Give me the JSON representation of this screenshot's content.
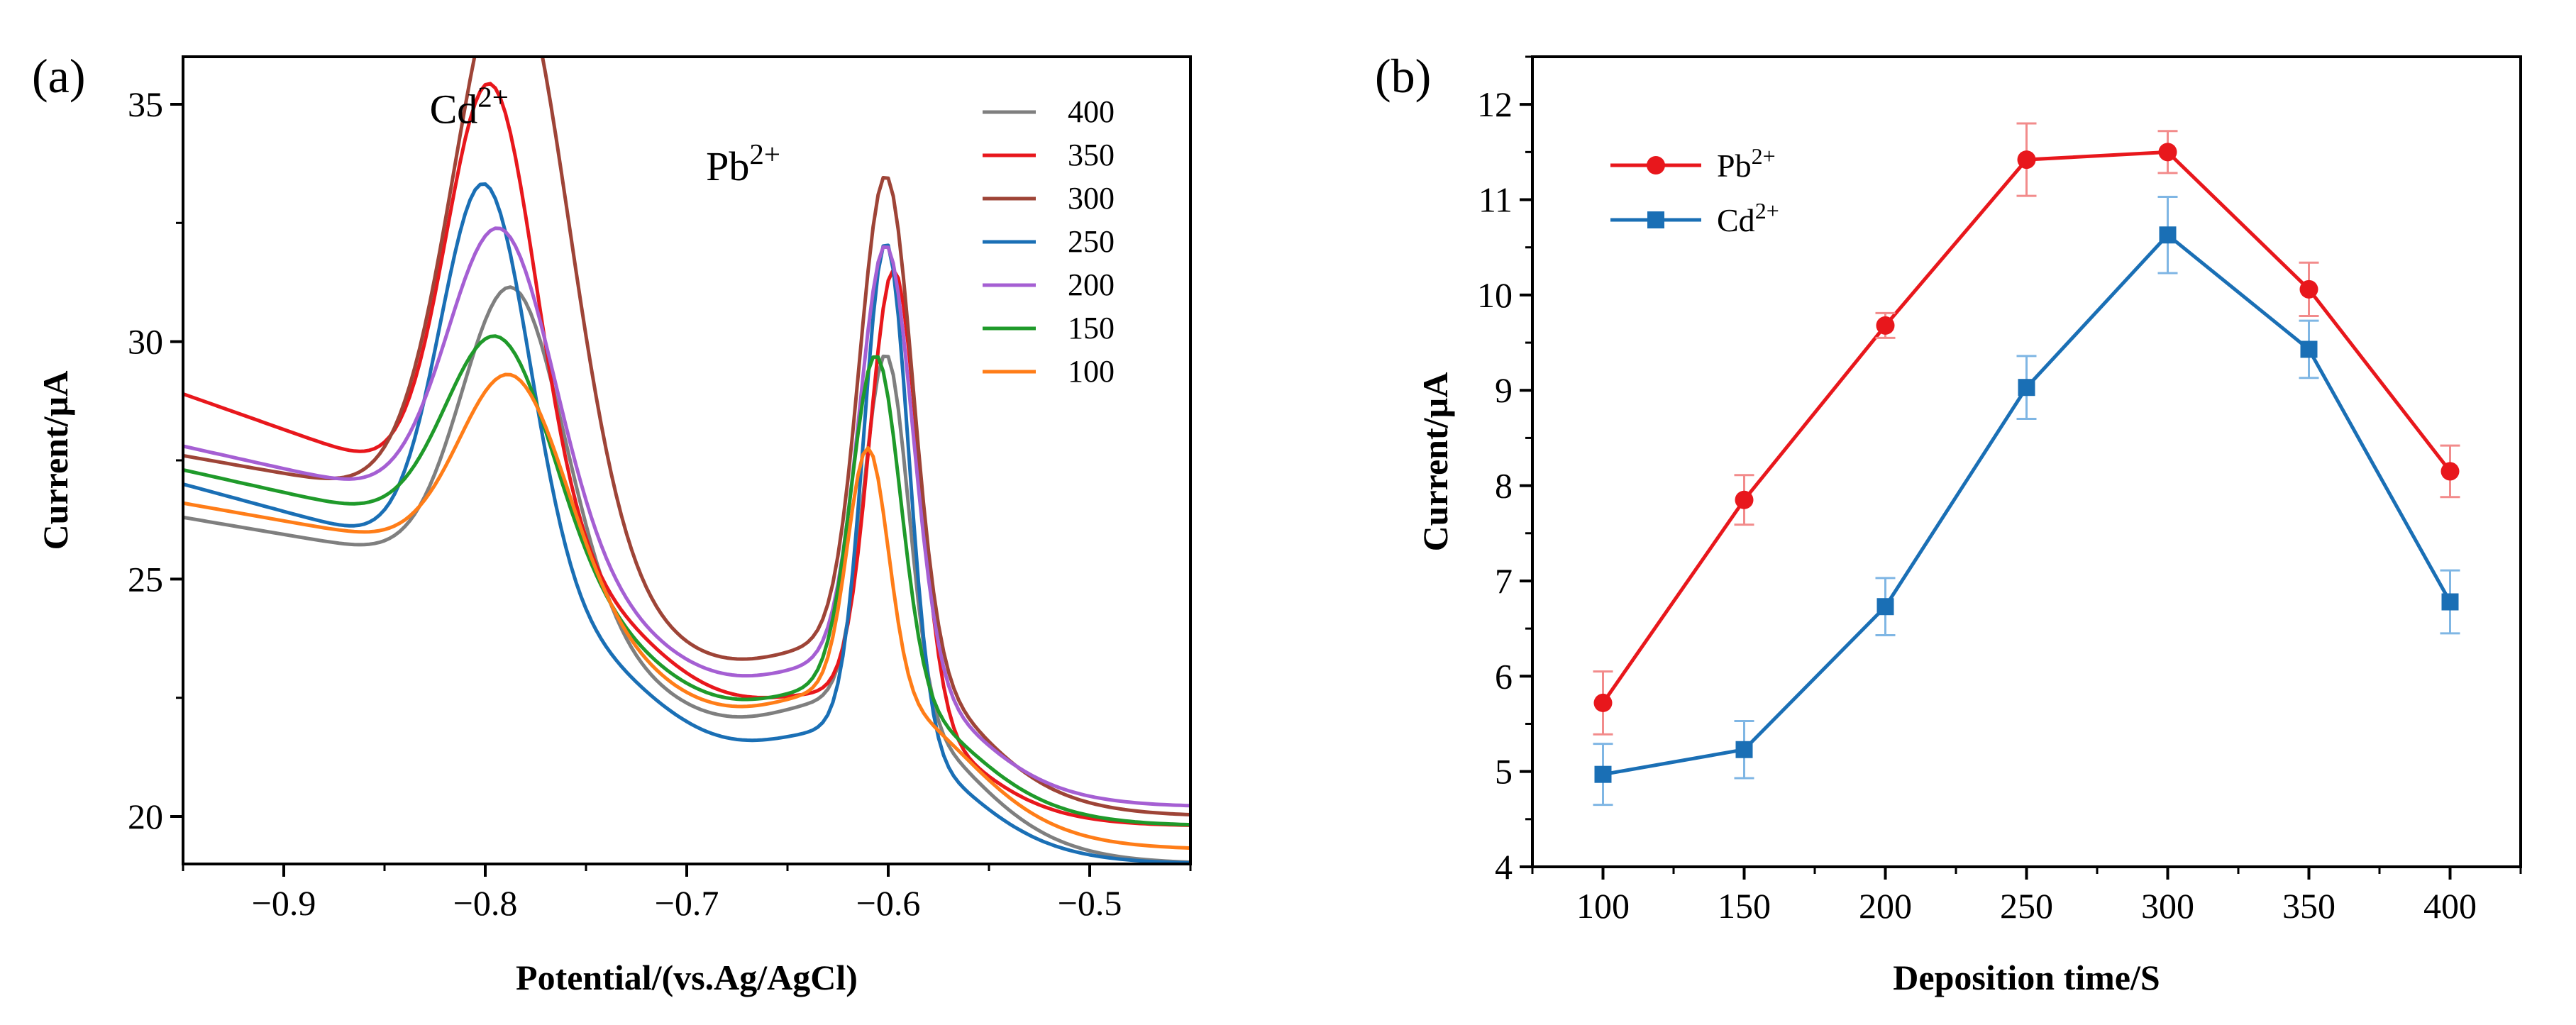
{
  "chart_data": [
    {
      "id": "a",
      "panel_label": "(a)",
      "type": "line",
      "xlabel": "Potential/(vs.Ag/AgCl)",
      "ylabel": "Current/µA",
      "xlim": [
        -0.95,
        -0.45
      ],
      "ylim": [
        19,
        36
      ],
      "xticks": [
        -0.9,
        -0.8,
        -0.7,
        -0.6,
        -0.5
      ],
      "xtick_labels": [
        "−0.9",
        "−0.8",
        "−0.7",
        "−0.6",
        "−0.5"
      ],
      "yticks": [
        20,
        25,
        30,
        35
      ],
      "ytick_labels": [
        "20",
        "25",
        "30",
        "35"
      ],
      "legend_position": "top-right",
      "annotations": [
        {
          "base": "Cd",
          "sup": "2+",
          "x": -0.808,
          "y": 34.6
        },
        {
          "base": "Pb",
          "sup": "2+",
          "x": -0.672,
          "y": 33.4
        }
      ],
      "series": [
        {
          "name": "400",
          "color": "#7f7f7f",
          "b0": 26.3,
          "s_pre": -0.072,
          "x_cd": -0.786,
          "h_cd": 6.3,
          "w_cd": 0.025,
          "x_pb": -0.601,
          "h_pb": 7.4,
          "w_pb": 0.011,
          "tail": 19.0,
          "k": 25
        },
        {
          "name": "350",
          "color": "#e8171c",
          "b0": 28.9,
          "s_pre": -0.15,
          "x_cd": -0.797,
          "h_cd": 9.0,
          "w_cd": 0.022,
          "x_pb": -0.597,
          "h_pb": 9.2,
          "w_pb": 0.012,
          "tail": 19.8,
          "k": 25
        },
        {
          "name": "300",
          "color": "#9e4437",
          "b0": 27.6,
          "s_pre": -0.075,
          "x_cd": -0.787,
          "h_cd": 11.9,
          "w_cd": 0.028,
          "x_pb": -0.601,
          "h_pb": 10.0,
          "w_pb": 0.013,
          "tail": 20.0,
          "k": 25
        },
        {
          "name": "250",
          "color": "#1a6fb5",
          "b0": 27.0,
          "s_pre": -0.115,
          "x_cd": -0.8,
          "h_cd": 8.2,
          "w_cd": 0.022,
          "x_pb": -0.601,
          "h_pb": 10.4,
          "w_pb": 0.011,
          "tail": 19.0,
          "k": 25
        },
        {
          "name": "200",
          "color": "#a55fd3",
          "b0": 27.8,
          "s_pre": -0.095,
          "x_cd": -0.792,
          "h_cd": 6.3,
          "w_cd": 0.026,
          "x_pb": -0.601,
          "h_pb": 8.9,
          "w_pb": 0.013,
          "tail": 20.2,
          "k": 25
        },
        {
          "name": "150",
          "color": "#1f9a2a",
          "b0": 27.3,
          "s_pre": -0.095,
          "x_cd": -0.793,
          "h_cd": 4.5,
          "w_cd": 0.026,
          "x_pb": -0.606,
          "h_pb": 7.0,
          "w_pb": 0.012,
          "tail": 19.8,
          "k": 25
        },
        {
          "name": "100",
          "color": "#ff7d18",
          "b0": 26.6,
          "s_pre": -0.075,
          "x_cd": -0.786,
          "h_cd": 4.2,
          "w_cd": 0.026,
          "x_pb": -0.61,
          "h_pb": 5.1,
          "w_pb": 0.01,
          "tail": 19.3,
          "k": 25
        }
      ]
    },
    {
      "id": "b",
      "panel_label": "(b)",
      "type": "line",
      "xlabel": "Deposition time/S",
      "ylabel": "Current/µA",
      "xlim": [
        75,
        425
      ],
      "ylim": [
        4,
        12.5
      ],
      "xticks": [
        100,
        150,
        200,
        250,
        300,
        350,
        400
      ],
      "xtick_labels": [
        "100",
        "150",
        "200",
        "250",
        "300",
        "350",
        "400"
      ],
      "yticks": [
        4,
        5,
        6,
        7,
        8,
        9,
        10,
        11,
        12
      ],
      "ytick_labels": [
        "4",
        "5",
        "6",
        "7",
        "8",
        "9",
        "10",
        "11",
        "12"
      ],
      "legend_position": "top-left",
      "x": [
        100,
        150,
        200,
        250,
        300,
        350,
        400
      ],
      "series": [
        {
          "name": "Pb",
          "sup": "2+",
          "marker": "circle",
          "color": "#e8171c",
          "errcolor": "#f28b8b",
          "values": [
            5.72,
            7.85,
            9.68,
            11.42,
            11.5,
            10.06,
            8.15
          ],
          "errors": [
            0.33,
            0.26,
            0.13,
            0.38,
            0.22,
            0.28,
            0.27
          ]
        },
        {
          "name": "Cd",
          "sup": "2+",
          "marker": "square",
          "color": "#1a6fb5",
          "errcolor": "#7fb6e4",
          "values": [
            4.97,
            5.23,
            6.73,
            9.03,
            10.63,
            9.43,
            6.78
          ],
          "errors": [
            0.32,
            0.3,
            0.3,
            0.33,
            0.4,
            0.3,
            0.33
          ]
        }
      ]
    }
  ]
}
